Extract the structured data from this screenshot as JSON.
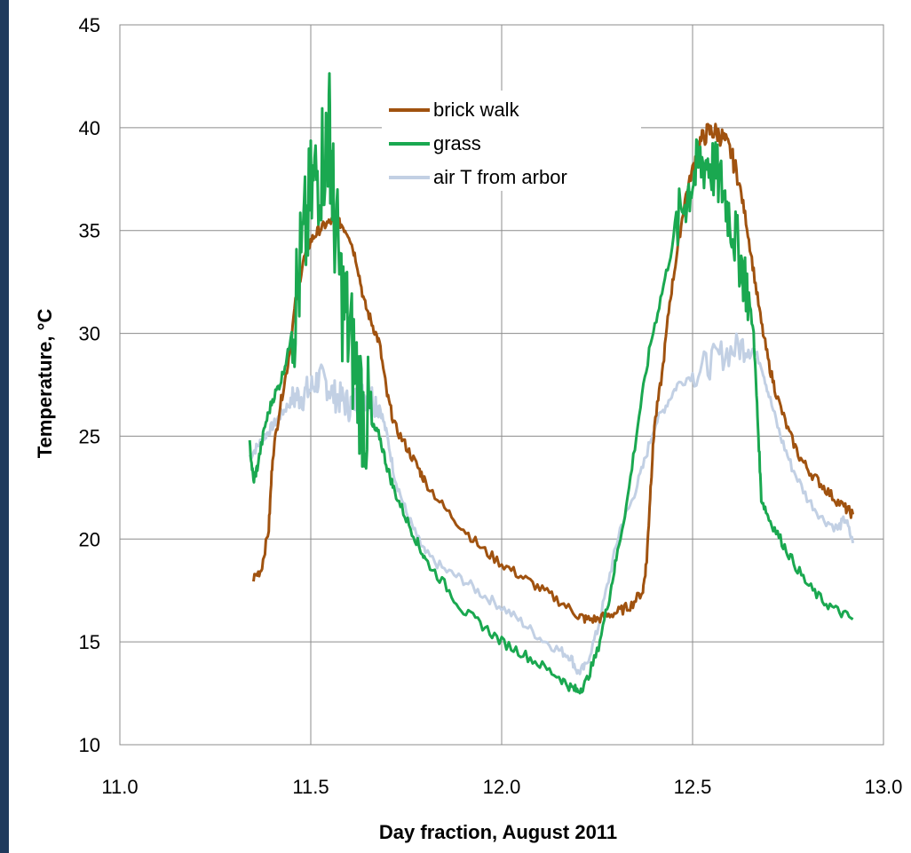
{
  "chart_data": {
    "type": "line",
    "title": "",
    "xlabel": "Day fraction, August 2011",
    "ylabel": "Temperature, °C",
    "xlim": [
      11.0,
      13.0
    ],
    "ylim": [
      10,
      45
    ],
    "x_ticks": [
      "11.0",
      "11.5",
      "12.0",
      "12.5",
      "13.0"
    ],
    "y_ticks": [
      "10",
      "15",
      "20",
      "25",
      "30",
      "35",
      "40",
      "45"
    ],
    "grid": true,
    "legend_position": "top-center",
    "series": [
      {
        "name": "brick walk",
        "color": "#a0520f",
        "points": [
          [
            11.35,
            18.1
          ],
          [
            11.37,
            18.5
          ],
          [
            11.39,
            20.5
          ],
          [
            11.4,
            24.0
          ],
          [
            11.42,
            26.5
          ],
          [
            11.44,
            28.5
          ],
          [
            11.46,
            31.5
          ],
          [
            11.48,
            33.5
          ],
          [
            11.5,
            34.5
          ],
          [
            11.52,
            35.0
          ],
          [
            11.54,
            35.3
          ],
          [
            11.56,
            35.5
          ],
          [
            11.58,
            35.3
          ],
          [
            11.6,
            34.8
          ],
          [
            11.62,
            33.5
          ],
          [
            11.64,
            31.5
          ],
          [
            11.66,
            30.5
          ],
          [
            11.68,
            29.5
          ],
          [
            11.7,
            27.0
          ],
          [
            11.72,
            25.5
          ],
          [
            11.75,
            24.5
          ],
          [
            11.78,
            23.5
          ],
          [
            11.8,
            22.8
          ],
          [
            11.85,
            21.5
          ],
          [
            11.9,
            20.5
          ],
          [
            11.95,
            19.5
          ],
          [
            12.0,
            18.8
          ],
          [
            12.05,
            18.2
          ],
          [
            12.1,
            17.6
          ],
          [
            12.15,
            17.0
          ],
          [
            12.2,
            16.3
          ],
          [
            12.22,
            16.1
          ],
          [
            12.25,
            16.1
          ],
          [
            12.28,
            16.3
          ],
          [
            12.31,
            16.5
          ],
          [
            12.34,
            16.8
          ],
          [
            12.37,
            17.5
          ],
          [
            12.38,
            19.0
          ],
          [
            12.39,
            22.5
          ],
          [
            12.4,
            25.5
          ],
          [
            12.42,
            28.0
          ],
          [
            12.44,
            31.5
          ],
          [
            12.46,
            34.0
          ],
          [
            12.48,
            36.5
          ],
          [
            12.5,
            38.0
          ],
          [
            12.52,
            39.3
          ],
          [
            12.54,
            39.8
          ],
          [
            12.56,
            39.8
          ],
          [
            12.58,
            39.5
          ],
          [
            12.6,
            38.8
          ],
          [
            12.62,
            37.5
          ],
          [
            12.64,
            35.5
          ],
          [
            12.66,
            33.0
          ],
          [
            12.68,
            30.5
          ],
          [
            12.7,
            28.5
          ],
          [
            12.72,
            27.0
          ],
          [
            12.75,
            25.3
          ],
          [
            12.78,
            24.0
          ],
          [
            12.81,
            23.2
          ],
          [
            12.84,
            22.6
          ],
          [
            12.87,
            22.0
          ],
          [
            12.9,
            21.5
          ],
          [
            12.92,
            21.2
          ]
        ]
      },
      {
        "name": "grass",
        "color": "#1aa850",
        "points": [
          [
            11.34,
            24.6
          ],
          [
            11.35,
            22.8
          ],
          [
            11.36,
            23.5
          ],
          [
            11.38,
            25.5
          ],
          [
            11.4,
            26.8
          ],
          [
            11.42,
            27.6
          ],
          [
            11.44,
            29.0
          ],
          [
            11.46,
            31.5
          ],
          [
            11.48,
            34.0
          ],
          [
            11.5,
            36.5
          ],
          [
            11.52,
            38.0
          ],
          [
            11.54,
            39.0
          ],
          [
            11.55,
            40.0
          ],
          [
            11.56,
            36.0
          ],
          [
            11.58,
            32.0
          ],
          [
            11.6,
            30.0
          ],
          [
            11.62,
            28.0
          ],
          [
            11.64,
            26.0
          ],
          [
            11.66,
            25.5
          ],
          [
            11.68,
            25.0
          ],
          [
            11.7,
            23.5
          ],
          [
            11.72,
            22.3
          ],
          [
            11.75,
            21.0
          ],
          [
            11.78,
            19.8
          ],
          [
            11.8,
            19.0
          ],
          [
            11.85,
            17.8
          ],
          [
            11.9,
            16.5
          ],
          [
            11.95,
            15.8
          ],
          [
            12.0,
            15.0
          ],
          [
            12.05,
            14.5
          ],
          [
            12.1,
            13.9
          ],
          [
            12.15,
            13.3
          ],
          [
            12.18,
            12.8
          ],
          [
            12.2,
            12.6
          ],
          [
            12.22,
            13.0
          ],
          [
            12.25,
            14.5
          ],
          [
            12.28,
            17.0
          ],
          [
            12.3,
            19.0
          ],
          [
            12.33,
            22.0
          ],
          [
            12.36,
            26.0
          ],
          [
            12.39,
            29.5
          ],
          [
            12.42,
            32.0
          ],
          [
            12.45,
            34.5
          ],
          [
            12.48,
            36.5
          ],
          [
            12.5,
            37.5
          ],
          [
            12.52,
            38.2
          ],
          [
            12.54,
            38.4
          ],
          [
            12.56,
            37.8
          ],
          [
            12.58,
            37.0
          ],
          [
            12.6,
            35.5
          ],
          [
            12.62,
            34.0
          ],
          [
            12.64,
            32.5
          ],
          [
            12.66,
            30.0
          ],
          [
            12.67,
            26.0
          ],
          [
            12.68,
            22.0
          ],
          [
            12.7,
            21.0
          ],
          [
            12.73,
            20.0
          ],
          [
            12.76,
            19.0
          ],
          [
            12.8,
            17.8
          ],
          [
            12.84,
            17.0
          ],
          [
            12.88,
            16.5
          ],
          [
            12.92,
            16.1
          ]
        ]
      },
      {
        "name": "air T from arbor",
        "color": "#c2d0e4",
        "points": [
          [
            11.34,
            24.0
          ],
          [
            11.36,
            24.5
          ],
          [
            11.38,
            25.0
          ],
          [
            11.4,
            25.5
          ],
          [
            11.42,
            26.0
          ],
          [
            11.44,
            26.5
          ],
          [
            11.46,
            26.9
          ],
          [
            11.48,
            27.0
          ],
          [
            11.5,
            27.3
          ],
          [
            11.52,
            27.8
          ],
          [
            11.54,
            27.6
          ],
          [
            11.56,
            27.0
          ],
          [
            11.58,
            26.8
          ],
          [
            11.6,
            26.5
          ],
          [
            11.62,
            26.8
          ],
          [
            11.64,
            27.0
          ],
          [
            11.66,
            26.9
          ],
          [
            11.68,
            26.5
          ],
          [
            11.7,
            25.0
          ],
          [
            11.72,
            23.0
          ],
          [
            11.75,
            21.3
          ],
          [
            11.78,
            20.0
          ],
          [
            11.8,
            19.3
          ],
          [
            11.85,
            18.5
          ],
          [
            11.9,
            18.0
          ],
          [
            11.95,
            17.3
          ],
          [
            12.0,
            16.7
          ],
          [
            12.05,
            16.0
          ],
          [
            12.1,
            15.2
          ],
          [
            12.15,
            14.6
          ],
          [
            12.18,
            14.3
          ],
          [
            12.2,
            13.5
          ],
          [
            12.22,
            13.8
          ],
          [
            12.25,
            15.5
          ],
          [
            12.28,
            18.0
          ],
          [
            12.31,
            20.5
          ],
          [
            12.34,
            21.8
          ],
          [
            12.37,
            23.5
          ],
          [
            12.4,
            25.5
          ],
          [
            12.43,
            26.5
          ],
          [
            12.46,
            27.5
          ],
          [
            12.5,
            28.0
          ],
          [
            12.54,
            28.5
          ],
          [
            12.58,
            29.0
          ],
          [
            12.62,
            29.3
          ],
          [
            12.65,
            29.5
          ],
          [
            12.68,
            28.5
          ],
          [
            12.7,
            27.0
          ],
          [
            12.73,
            25.0
          ],
          [
            12.76,
            23.5
          ],
          [
            12.8,
            22.0
          ],
          [
            12.84,
            21.0
          ],
          [
            12.88,
            20.5
          ],
          [
            12.9,
            21.0
          ],
          [
            12.92,
            19.8
          ]
        ]
      }
    ]
  }
}
